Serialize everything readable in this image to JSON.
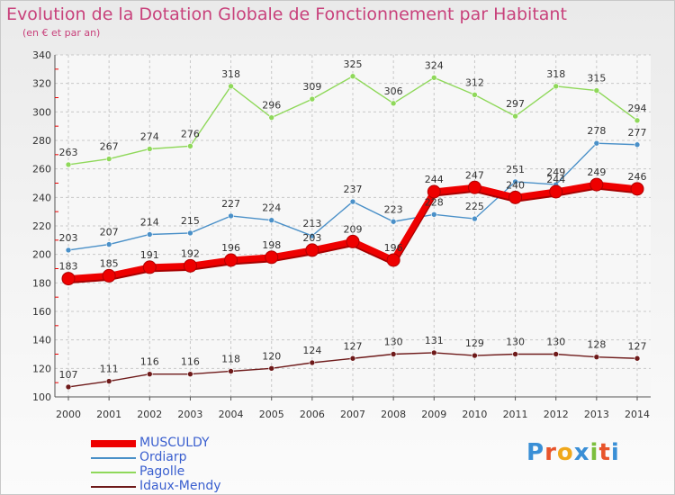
{
  "header": {
    "title": "Evolution de la Dotation Globale de Fonctionnement par Habitant",
    "subtitle": "(en € et par an)"
  },
  "logo": {
    "text": "Proxiti",
    "colors": [
      "#3a8fd6",
      "#e8542b",
      "#f0a81c",
      "#3a8fd6",
      "#7cbf3d",
      "#e8542b",
      "#3a8fd6"
    ]
  },
  "chart_data": {
    "type": "line",
    "title": "Evolution de la Dotation Globale de Fonctionnement par Habitant",
    "subtitle": "(en € et par an)",
    "x": [
      "2000",
      "2001",
      "2002",
      "2003",
      "2004",
      "2005",
      "2006",
      "2007",
      "2008",
      "2009",
      "2010",
      "2011",
      "2012",
      "2013",
      "2014"
    ],
    "ylim": [
      100,
      340
    ],
    "yticks": [
      100,
      120,
      140,
      160,
      180,
      200,
      220,
      240,
      260,
      280,
      300,
      320,
      340
    ],
    "grid": true,
    "legend_position": "bottom-left",
    "series": [
      {
        "name": "MUSCULDY",
        "color": "#ee0000",
        "highlight": true,
        "values": [
          183,
          185,
          191,
          192,
          196,
          198,
          203,
          209,
          196,
          244,
          247,
          240,
          244,
          249,
          246
        ]
      },
      {
        "name": "Ordiarp",
        "color": "#4a90c8",
        "highlight": false,
        "values": [
          203,
          207,
          214,
          215,
          227,
          224,
          213,
          237,
          223,
          228,
          225,
          251,
          249,
          278,
          277
        ]
      },
      {
        "name": "Pagolle",
        "color": "#8fd85a",
        "highlight": false,
        "values": [
          263,
          267,
          274,
          276,
          318,
          296,
          309,
          325,
          306,
          324,
          312,
          297,
          318,
          315,
          294
        ]
      },
      {
        "name": "Idaux-Mendy",
        "color": "#6e1a1a",
        "highlight": false,
        "values": [
          107,
          111,
          116,
          116,
          118,
          120,
          124,
          127,
          130,
          131,
          129,
          130,
          130,
          128,
          127
        ]
      }
    ]
  }
}
